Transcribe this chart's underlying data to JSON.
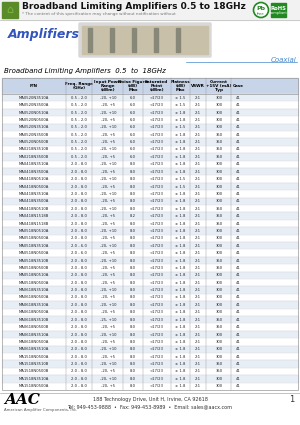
{
  "title": "Broadband Limiting Amplifiers 0.5 to 18GHz",
  "subtitle": "* The content of this specification may change without notification without",
  "section_title": "Amplifiers",
  "coaxial_label": "Coaxial",
  "table_subtitle": "Broadband Limiting Amplifiers  0.5  to  18GHz",
  "col_header_labels": [
    "P/N",
    "Freq. Range\n(GHz)",
    "Input Power\nRange\n(dBm)",
    "Noise Figure\n(dB)\nMax",
    "Saturated\nPoint\n(dBm)",
    "Flatness\n(dB)\nMax",
    "VSWR",
    "Current\n+15V (mA)\nTyp",
    "Case"
  ],
  "col_props": [
    0.215,
    0.09,
    0.105,
    0.065,
    0.095,
    0.065,
    0.055,
    0.085,
    0.045
  ],
  "rows": [
    [
      "MA0520N3510A",
      "0.5 - 2.0",
      "-20, +10",
      "6.0",
      "<17/23",
      "± 1.5",
      "2:1",
      "300",
      "41"
    ],
    [
      "MA0520N3500A",
      "0.5 - 2.0",
      "-20, +5",
      "6.0",
      "<17/23",
      "± 1.5",
      "2:1",
      "300",
      "41"
    ],
    [
      "MA0520N0510A",
      "0.5 - 2.0",
      "-20, +10",
      "6.0",
      "<17/23",
      "± 1.8",
      "2:1",
      "300",
      "41"
    ],
    [
      "MA0520N0500A",
      "0.5 - 2.0",
      "-20, +5",
      "6.0",
      "<17/23",
      "± 1.8",
      "2:1",
      "300",
      "41"
    ],
    [
      "MA0520N3510A",
      "0.5 - 2.0",
      "-20, +10",
      "6.0",
      "<17/23",
      "± 1.5",
      "2:1",
      "300",
      "41"
    ],
    [
      "MA0520N3500B",
      "0.5 - 2.0",
      "-20, +5",
      "6.0",
      "<17/23",
      "± 1.8",
      "2:1",
      "350",
      "41"
    ],
    [
      "MA0520N0500B",
      "0.5 - 2.0",
      "-20, +5",
      "6.0",
      "<17/23",
      "± 1.8",
      "2:1",
      "350",
      "41"
    ],
    [
      "MA0218N3510B",
      "0.5 - 2.0",
      "-20, +10",
      "6.0",
      "<17/23",
      "± 1.8",
      "2:1",
      "350",
      "41"
    ],
    [
      "MA0218N3500B",
      "0.5 - 2.0",
      "-20, +5",
      "6.0",
      "<17/23",
      "± 1.8",
      "2:1",
      "350",
      "41"
    ],
    [
      "MA0418N3510A",
      "2.0 - 8.0",
      "-20, +10",
      "8.0",
      "<17/23",
      "± 1.8",
      "2:1",
      "300",
      "41"
    ],
    [
      "MA0418N3500A",
      "2.0 - 8.0",
      "-20, +5",
      "8.0",
      "<17/23",
      "± 1.8",
      "2:1",
      "300",
      "41"
    ],
    [
      "MA0418N0510A",
      "2.0 - 8.0",
      "-20, +10",
      "8.0",
      "<17/23",
      "± 1.5",
      "2:1",
      "300",
      "41"
    ],
    [
      "MA0418N0500A",
      "2.0 - 8.0",
      "-20, +5",
      "8.0",
      "<17/23",
      "± 1.5",
      "2:1",
      "300",
      "41"
    ],
    [
      "MA0418N3510A",
      "2.0 - 8.0",
      "-20, +10",
      "8.0",
      "<17/23",
      "± 1.8",
      "2:1",
      "300",
      "41"
    ],
    [
      "MA0418N3500A",
      "2.0 - 8.0",
      "-20, +5",
      "8.0",
      "<17/23",
      "± 1.8",
      "2:1",
      "300",
      "41"
    ],
    [
      "MA0418N0510B",
      "2.0 - 8.0",
      "-20, +10",
      "8.0",
      "<17/23",
      "± 1.8",
      "2:1",
      "350",
      "41"
    ],
    [
      "MA0418N1518B",
      "2.0 - 8.0",
      "-20, +5",
      "8.2",
      "<17/23",
      "± 1.8",
      "2:1",
      "350",
      "41"
    ],
    [
      "MA0418N1518B",
      "2.0 - 8.0",
      "-20, +5",
      "8.0",
      "<17/23",
      "± 1.8",
      "2:1",
      "350",
      "41"
    ],
    [
      "MA0518N0510A",
      "2.0 - 8.0",
      "-20, +10",
      "8.0",
      "<17/23",
      "± 1.8",
      "2:1",
      "300",
      "41"
    ],
    [
      "MA0518N0500A",
      "2.0 - 8.0",
      "-20, +5",
      "8.0",
      "<17/23",
      "± 1.8",
      "2:1",
      "300",
      "41"
    ],
    [
      "MA0518N3510A",
      "2.0 - 6.0",
      "-20, +10",
      "8.0",
      "<17/23",
      "± 1.8",
      "2:1",
      "300",
      "41"
    ],
    [
      "MA0518N0500A",
      "2.0 - 6.0",
      "-20, +5",
      "8.0",
      "<17/23",
      "± 1.8",
      "2:1",
      "300",
      "41"
    ],
    [
      "MA0518N3510B",
      "2.0 - 8.0",
      "-20, +10",
      "8.0",
      "<17/23",
      "± 1.8",
      "2:1",
      "350",
      "41"
    ],
    [
      "MA0518N0500B",
      "2.0 - 8.0",
      "-20, +5",
      "8.0",
      "<17/23",
      "± 1.8",
      "2:1",
      "350",
      "41"
    ],
    [
      "MA0518N0510A",
      "2.0 - 8.0",
      "-20, +5",
      "8.0",
      "<17/23",
      "± 1.8",
      "2:1",
      "300",
      "41"
    ],
    [
      "MA0518N0500A",
      "2.0 - 8.0",
      "-20, +5",
      "8.0",
      "<17/23",
      "± 1.8",
      "2:1",
      "300",
      "41"
    ],
    [
      "MA0618N3510A",
      "2.0 - 8.0",
      "-20, +10",
      "8.0",
      "<17/23",
      "± 1.8",
      "2:1",
      "300",
      "41"
    ],
    [
      "MA0618N0500A",
      "2.0 - 8.0",
      "-20, +5",
      "8.0",
      "<17/23",
      "± 1.8",
      "2:1",
      "300",
      "41"
    ],
    [
      "MA0618N3510A",
      "2.0 - 8.0",
      "-20, +10",
      "8.0",
      "<17/23",
      "± 1.8",
      "2:1",
      "300",
      "41"
    ],
    [
      "MA0618N0500A",
      "2.0 - 8.0",
      "-20, +5",
      "8.0",
      "<17/23",
      "± 1.8",
      "2:1",
      "300",
      "41"
    ],
    [
      "MA0618N3510B",
      "2.0 - 8.0",
      "-25, +10",
      "8.0",
      "<17/23",
      "± 1.8",
      "2:1",
      "350",
      "41"
    ],
    [
      "MA0618N0500B",
      "2.0 - 8.0",
      "-20, +5",
      "8.0",
      "<17/23",
      "± 1.8",
      "2:1",
      "350",
      "41"
    ],
    [
      "MA0618N3510A",
      "2.0 - 8.0",
      "-20, +10",
      "8.0",
      "<17/23",
      "± 1.8",
      "2:1",
      "300",
      "41"
    ],
    [
      "MA0618N0500A",
      "2.0 - 8.0",
      "-20, +5",
      "8.0",
      "<17/23",
      "± 1.8",
      "2:1",
      "300",
      "41"
    ],
    [
      "MA0618N3510A",
      "2.0 - 8.0",
      "-20, +10",
      "8.0",
      "<17/23",
      "± 1.8",
      "2:1",
      "300",
      "41"
    ],
    [
      "MA1518N0500A",
      "2.0 - 8.0",
      "-20, +5",
      "8.0",
      "<17/23",
      "± 1.8",
      "2:1",
      "300",
      "41"
    ],
    [
      "MA1518N3510B",
      "2.0 - 8.0",
      "-20, +10",
      "8.0",
      "<17/23",
      "± 1.8",
      "2:1",
      "350",
      "41"
    ],
    [
      "MA1518N0500B",
      "2.0 - 8.0",
      "-20, +5",
      "8.0",
      "<17/23",
      "± 1.8",
      "2:1",
      "350",
      "41"
    ],
    [
      "MA1518N3510A",
      "2.0 - 8.0",
      "-20, +10",
      "8.0",
      "<17/23",
      "± 1.8",
      "2:1",
      "300",
      "41"
    ],
    [
      "MA1518N0500A",
      "2.0 - 8.0",
      "-20, +5",
      "8.0",
      "<17/23",
      "± 1.8",
      "2:1",
      "300",
      "41"
    ]
  ],
  "bg_color": "#ffffff",
  "header_bg": "#c8d4e8",
  "row_alt_bg": "#e8eef6",
  "row_bg": "#ffffff",
  "table_border": "#999999",
  "header_text_color": "#000000",
  "row_text_color": "#222222",
  "title_color": "#000000",
  "footer_line1": "188 Technology Drive, Unit H, Irvine, CA 92618",
  "footer_line2": "Tel: 949-453-9888  •  Fax: 949-453-8989  •  Email: sales@aacx.com",
  "page_num": "1",
  "aac_full": "American Amplifier Components, Inc."
}
